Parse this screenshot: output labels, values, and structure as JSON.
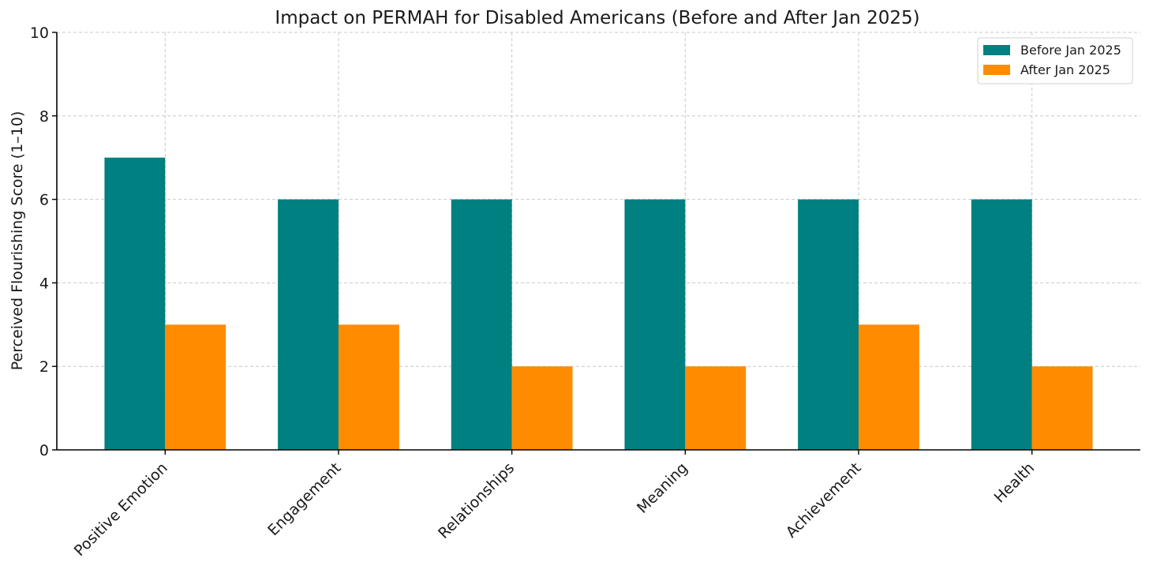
{
  "chart_data": {
    "type": "bar",
    "title": "Impact on PERMAH for Disabled Americans (Before and After Jan 2025)",
    "xlabel": "",
    "ylabel": "Perceived Flourishing Score (1–10)",
    "categories": [
      "Positive Emotion",
      "Engagement",
      "Relationships",
      "Meaning",
      "Achievement",
      "Health"
    ],
    "series": [
      {
        "name": "Before Jan 2025",
        "color": "#008080",
        "values": [
          7,
          6,
          6,
          6,
          6,
          6
        ]
      },
      {
        "name": "After Jan 2025",
        "color": "#ff8c00",
        "values": [
          3,
          3,
          2,
          2,
          3,
          2
        ]
      }
    ],
    "ylim": [
      0,
      10
    ],
    "yticks": [
      0,
      2,
      4,
      6,
      8,
      10
    ],
    "grid": true,
    "legend_position": "top-right"
  }
}
